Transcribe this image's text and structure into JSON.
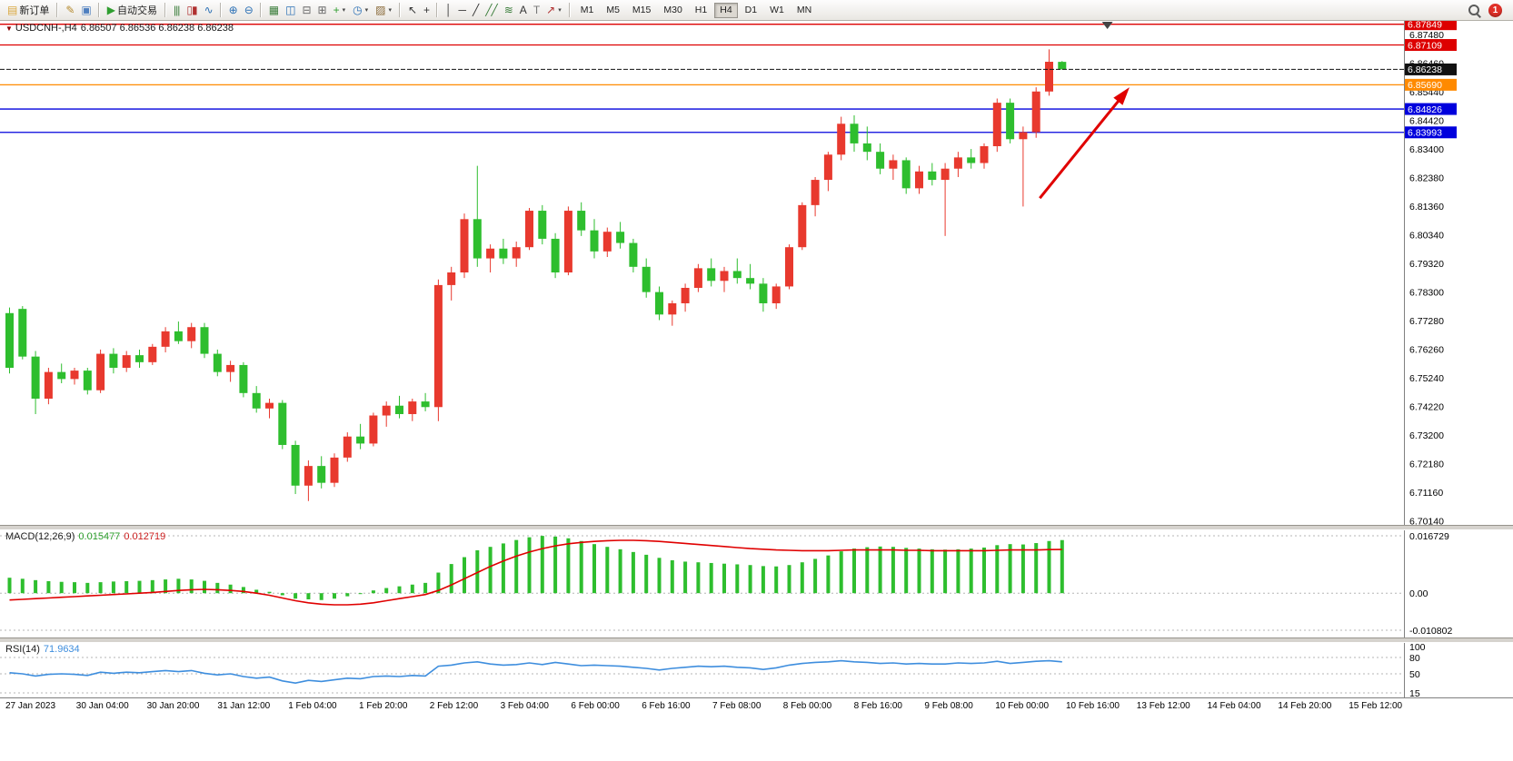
{
  "toolbar": {
    "items": [
      {
        "name": "new-order-button",
        "label": "新订单",
        "glyph": "▤",
        "color": "#d9a73c"
      },
      {
        "type": "sep"
      },
      {
        "name": "metaeditor-button",
        "glyph": "✎",
        "color": "#b58a2e"
      },
      {
        "name": "terminal-button",
        "glyph": "▣",
        "color": "#4f7fbf"
      },
      {
        "type": "sep"
      },
      {
        "name": "auto-trading-button",
        "label": "自动交易",
        "glyph": "▶",
        "color": "#2f9e2f"
      },
      {
        "type": "sep"
      },
      {
        "name": "bar-chart-button",
        "glyph": "|||",
        "color": "#3a7d3a"
      },
      {
        "name": "candlestick-chart-button",
        "glyph": "▯▮",
        "color": "#b03030"
      },
      {
        "name": "line-chart-button",
        "glyph": "∿",
        "color": "#2a6fb5"
      },
      {
        "type": "sep"
      },
      {
        "name": "zoom-in-button",
        "glyph": "⊕",
        "color": "#2a6fb5"
      },
      {
        "name": "zoom-out-button",
        "glyph": "⊖",
        "color": "#2a6fb5"
      },
      {
        "type": "sep"
      },
      {
        "name": "tile-windows-button",
        "glyph": "▦",
        "color": "#3a7d3a"
      },
      {
        "name": "cascade-windows-button",
        "glyph": "◫",
        "color": "#2a6fb5"
      },
      {
        "name": "arrange-horizontal-button",
        "glyph": "⊟",
        "color": "#666666"
      },
      {
        "name": "arrange-vertical-button",
        "glyph": "⊞",
        "color": "#666666"
      },
      {
        "name": "new-chart-button",
        "glyph": "+",
        "color": "#2f9e2f",
        "caret": true
      },
      {
        "name": "periods-button",
        "glyph": "◷",
        "color": "#2a6fb5",
        "caret": true
      },
      {
        "name": "templates-button",
        "glyph": "▨",
        "color": "#8a6a3a",
        "caret": true
      },
      {
        "type": "sep"
      },
      {
        "name": "cursor-button",
        "glyph": "↖",
        "color": "#333333"
      },
      {
        "name": "crosshair-button",
        "glyph": "+",
        "color": "#333333"
      },
      {
        "type": "sep"
      },
      {
        "name": "vertical-line-button",
        "glyph": "│",
        "color": "#333333"
      },
      {
        "name": "horizontal-line-button",
        "glyph": "─",
        "color": "#333333"
      },
      {
        "name": "trendline-button",
        "glyph": "╱",
        "color": "#333333"
      },
      {
        "name": "channel-button",
        "glyph": "╱╱",
        "color": "#3a7d3a"
      },
      {
        "name": "fibonacci-button",
        "glyph": "≋",
        "color": "#3a7d3a"
      },
      {
        "name": "text-button",
        "glyph": "A",
        "color": "#333333"
      },
      {
        "name": "label-button",
        "glyph": "T",
        "color": "#777777"
      },
      {
        "name": "arrows-button",
        "glyph": "↗",
        "color": "#b03030",
        "caret": true
      },
      {
        "type": "sep"
      }
    ],
    "timeframes": [
      "M1",
      "M5",
      "M15",
      "M30",
      "H1",
      "H4",
      "D1",
      "W1",
      "MN"
    ],
    "active_timeframe": "H4",
    "notification_count": "1"
  },
  "chart_data": {
    "type": "candlestick",
    "symbol_period": "USDCNH-,H4",
    "ohlc_text": "6.86507 6.86536 6.86238 6.86238",
    "collapse_icon": "▼",
    "price_max": 6.88,
    "price_min": 6.7,
    "up_color": "#e8392e",
    "down_color": "#2ebe2e",
    "axis_prices": [
      6.8748,
      6.8646,
      6.8544,
      6.8442,
      6.834,
      6.8238,
      6.8136,
      6.8034,
      6.7932,
      6.783,
      6.7728,
      6.7626,
      6.7524,
      6.7422,
      6.732,
      6.7218,
      6.7116,
      6.7014
    ],
    "levels": [
      {
        "price": 6.87849,
        "color": "#dd0000"
      },
      {
        "price": 6.87109,
        "color": "#dd0000"
      },
      {
        "price": 6.8569,
        "color": "#ff8a00"
      },
      {
        "price": 6.84826,
        "color": "#0000dd"
      },
      {
        "price": 6.83993,
        "color": "#0000dd"
      }
    ],
    "current_price": 6.86238,
    "shift_marker_bar": 84.8,
    "arrow": {
      "from_bar": 79.6,
      "from_price": 6.8165,
      "to_bar": 86.5,
      "to_price": 6.856,
      "color": "#e00000"
    },
    "candles": [
      [
        6.7755,
        6.7775,
        6.754,
        6.756
      ],
      [
        6.777,
        6.778,
        6.759,
        6.76
      ],
      [
        6.76,
        6.762,
        6.7395,
        6.745
      ],
      [
        6.745,
        6.756,
        6.743,
        6.7545
      ],
      [
        6.7545,
        6.7575,
        6.7505,
        6.752
      ],
      [
        6.752,
        6.756,
        6.75,
        6.755
      ],
      [
        6.755,
        6.756,
        6.7465,
        6.748
      ],
      [
        6.748,
        6.7625,
        6.747,
        6.761
      ],
      [
        6.761,
        6.763,
        6.754,
        6.756
      ],
      [
        6.756,
        6.762,
        6.7545,
        6.7605
      ],
      [
        6.7605,
        6.7625,
        6.756,
        6.758
      ],
      [
        6.758,
        6.7645,
        6.757,
        6.7635
      ],
      [
        6.7635,
        6.7705,
        6.7615,
        6.769
      ],
      [
        6.769,
        6.7725,
        6.7645,
        6.7655
      ],
      [
        6.7655,
        6.772,
        6.763,
        6.7705
      ],
      [
        6.7705,
        6.772,
        6.7595,
        6.761
      ],
      [
        6.761,
        6.7625,
        6.753,
        6.7545
      ],
      [
        6.7545,
        6.7585,
        6.751,
        6.757
      ],
      [
        6.757,
        6.758,
        6.7455,
        6.747
      ],
      [
        6.747,
        6.7495,
        6.74,
        6.7415
      ],
      [
        6.7415,
        6.745,
        6.738,
        6.7435
      ],
      [
        6.7435,
        6.7445,
        6.727,
        6.7285
      ],
      [
        6.7285,
        6.73,
        6.711,
        6.714
      ],
      [
        6.714,
        6.723,
        6.7085,
        6.721
      ],
      [
        6.721,
        6.7245,
        6.713,
        6.715
      ],
      [
        6.715,
        6.7255,
        6.7135,
        6.724
      ],
      [
        6.724,
        6.733,
        6.7225,
        6.7315
      ],
      [
        6.7315,
        6.736,
        6.727,
        6.729
      ],
      [
        6.729,
        6.74,
        6.728,
        6.739
      ],
      [
        6.739,
        6.744,
        6.735,
        6.7425
      ],
      [
        6.7425,
        6.746,
        6.738,
        6.7395
      ],
      [
        6.7395,
        6.745,
        6.737,
        6.744
      ],
      [
        6.744,
        6.747,
        6.7405,
        6.742
      ],
      [
        6.742,
        6.7875,
        6.737,
        6.7855
      ],
      [
        6.7855,
        6.792,
        6.78,
        6.79
      ],
      [
        6.79,
        6.811,
        6.788,
        6.809
      ],
      [
        6.809,
        6.828,
        6.792,
        6.795
      ],
      [
        6.795,
        6.8,
        6.79,
        6.7985
      ],
      [
        6.7985,
        6.802,
        6.793,
        6.795
      ],
      [
        6.795,
        6.801,
        6.792,
        6.799
      ],
      [
        6.799,
        6.813,
        6.798,
        6.812
      ],
      [
        6.812,
        6.814,
        6.8,
        6.802
      ],
      [
        6.802,
        6.804,
        6.788,
        6.79
      ],
      [
        6.79,
        6.8135,
        6.789,
        6.812
      ],
      [
        6.812,
        6.815,
        6.803,
        6.805
      ],
      [
        6.805,
        6.809,
        6.795,
        6.7975
      ],
      [
        6.7975,
        6.806,
        6.7955,
        6.8045
      ],
      [
        6.8045,
        6.808,
        6.7985,
        6.8005
      ],
      [
        6.8005,
        6.802,
        6.79,
        6.792
      ],
      [
        6.792,
        6.795,
        6.781,
        6.783
      ],
      [
        6.783,
        6.785,
        6.773,
        6.775
      ],
      [
        6.775,
        6.78,
        6.771,
        6.779
      ],
      [
        6.779,
        6.786,
        6.776,
        6.7845
      ],
      [
        6.7845,
        6.793,
        6.783,
        6.7915
      ],
      [
        6.7915,
        6.795,
        6.785,
        6.787
      ],
      [
        6.787,
        6.792,
        6.783,
        6.7905
      ],
      [
        6.7905,
        6.795,
        6.786,
        6.788
      ],
      [
        6.788,
        6.793,
        6.784,
        6.786
      ],
      [
        6.786,
        6.788,
        6.776,
        6.779
      ],
      [
        6.779,
        6.786,
        6.777,
        6.785
      ],
      [
        6.785,
        6.8,
        6.784,
        6.799
      ],
      [
        6.799,
        6.815,
        6.798,
        6.814
      ],
      [
        6.814,
        6.824,
        6.81,
        6.823
      ],
      [
        6.823,
        6.833,
        6.819,
        6.832
      ],
      [
        6.832,
        6.8455,
        6.83,
        6.843
      ],
      [
        6.843,
        6.846,
        6.833,
        6.836
      ],
      [
        6.836,
        6.842,
        6.83,
        6.833
      ],
      [
        6.833,
        6.836,
        6.825,
        6.827
      ],
      [
        6.827,
        6.832,
        6.823,
        6.83
      ],
      [
        6.83,
        6.831,
        6.818,
        6.82
      ],
      [
        6.82,
        6.828,
        6.818,
        6.826
      ],
      [
        6.826,
        6.829,
        6.821,
        6.823
      ],
      [
        6.823,
        6.829,
        6.803,
        6.827
      ],
      [
        6.827,
        6.833,
        6.824,
        6.831
      ],
      [
        6.831,
        6.834,
        6.827,
        6.829
      ],
      [
        6.829,
        6.836,
        6.827,
        6.835
      ],
      [
        6.835,
        6.852,
        6.833,
        6.8505
      ],
      [
        6.8505,
        6.852,
        6.836,
        6.8375
      ],
      [
        6.8375,
        6.842,
        6.8135,
        6.84
      ],
      [
        6.84,
        6.856,
        6.838,
        6.8545
      ],
      [
        6.8545,
        6.8695,
        6.853,
        6.8651
      ],
      [
        6.86507,
        6.86536,
        6.86238,
        6.86238
      ]
    ]
  },
  "macd": {
    "label": "MACD(12,26,9)",
    "value_main": "0.015477",
    "value_signal": "0.012719",
    "max": 0.016729,
    "min": -0.010802,
    "axis": [
      {
        "v": 0.016729,
        "t": "0.016729"
      },
      {
        "v": 0,
        "t": "0.00"
      },
      {
        "v": -0.010802,
        "t": "-0.010802"
      }
    ],
    "hist_color": "#2ebe2e",
    "signal_color": "#e00000",
    "histogram": [
      0.0045,
      0.0042,
      0.0038,
      0.0035,
      0.0033,
      0.0032,
      0.003,
      0.0032,
      0.0034,
      0.0035,
      0.0036,
      0.0038,
      0.004,
      0.0042,
      0.004,
      0.0036,
      0.003,
      0.0025,
      0.0018,
      0.001,
      0.0004,
      -0.0006,
      -0.0016,
      -0.0018,
      -0.002,
      -0.0016,
      -0.0009,
      0.0,
      0.0008,
      0.0015,
      0.002,
      0.0025,
      0.003,
      0.006,
      0.0085,
      0.0105,
      0.0125,
      0.0135,
      0.0145,
      0.0155,
      0.0163,
      0.0167,
      0.0165,
      0.016,
      0.0152,
      0.0143,
      0.0135,
      0.0128,
      0.012,
      0.0112,
      0.0103,
      0.0096,
      0.0092,
      0.009,
      0.0088,
      0.0086,
      0.0084,
      0.0082,
      0.0079,
      0.0078,
      0.0082,
      0.009,
      0.01,
      0.011,
      0.0122,
      0.013,
      0.0134,
      0.0136,
      0.0135,
      0.0132,
      0.013,
      0.0128,
      0.0127,
      0.0128,
      0.013,
      0.0133,
      0.014,
      0.0143,
      0.0142,
      0.0146,
      0.0152,
      0.015477
    ],
    "signal": [
      -0.002,
      -0.0018,
      -0.0016,
      -0.0014,
      -0.0012,
      -0.001,
      -0.0008,
      -0.0006,
      -0.0004,
      -0.0002,
      0.0,
      0.0002,
      0.0005,
      0.0008,
      0.001,
      0.0011,
      0.001,
      0.0008,
      0.0005,
      0.0,
      -0.0006,
      -0.0014,
      -0.0022,
      -0.0028,
      -0.0032,
      -0.0034,
      -0.0034,
      -0.0032,
      -0.0028,
      -0.0022,
      -0.0016,
      -0.001,
      -0.0004,
      0.0008,
      0.0024,
      0.0042,
      0.006,
      0.0078,
      0.0094,
      0.0108,
      0.012,
      0.013,
      0.0138,
      0.0144,
      0.0148,
      0.0151,
      0.0153,
      0.0154,
      0.0154,
      0.0153,
      0.0151,
      0.0148,
      0.0145,
      0.0142,
      0.0139,
      0.0136,
      0.0133,
      0.013,
      0.0128,
      0.0126,
      0.0125,
      0.0124,
      0.0124,
      0.0124,
      0.0125,
      0.0126,
      0.0126,
      0.0126,
      0.0126,
      0.0125,
      0.0125,
      0.0124,
      0.0124,
      0.0124,
      0.0124,
      0.0124,
      0.0125,
      0.0126,
      0.0126,
      0.0126,
      0.0127,
      0.012719
    ]
  },
  "rsi": {
    "label": "RSI(14)",
    "value": "71.9634",
    "line_color": "#3e8ede",
    "axis": [
      100,
      80,
      50,
      15
    ],
    "levels": [
      80,
      50,
      15
    ],
    "values": [
      52,
      50,
      46,
      49,
      50,
      49,
      47,
      53,
      51,
      53,
      52,
      54,
      56,
      54,
      56,
      51,
      48,
      50,
      45,
      42,
      44,
      37,
      33,
      38,
      36,
      39,
      42,
      41,
      45,
      46,
      45,
      47,
      46,
      64,
      66,
      70,
      72,
      68,
      66,
      67,
      70,
      67,
      71,
      68,
      65,
      66,
      65,
      64,
      62,
      60,
      57,
      60,
      62,
      64,
      63,
      64,
      62,
      61,
      58,
      61,
      66,
      69,
      71,
      72,
      74,
      72,
      71,
      69,
      70,
      68,
      69,
      68,
      68,
      70,
      69,
      70,
      73,
      69,
      71,
      73,
      74,
      71.96
    ]
  },
  "time_axis": {
    "labels": [
      "27 Jan 2023",
      "30 Jan 04:00",
      "30 Jan 20:00",
      "31 Jan 12:00",
      "1 Feb 04:00",
      "1 Feb 20:00",
      "2 Feb 12:00",
      "3 Feb 04:00",
      "6 Feb 00:00",
      "6 Feb 16:00",
      "7 Feb 08:00",
      "8 Feb 00:00",
      "8 Feb 16:00",
      "9 Feb 08:00",
      "10 Feb 00:00",
      "10 Feb 16:00",
      "13 Feb 12:00",
      "14 Feb 04:00",
      "14 Feb 20:00",
      "15 Feb 12:00"
    ]
  }
}
